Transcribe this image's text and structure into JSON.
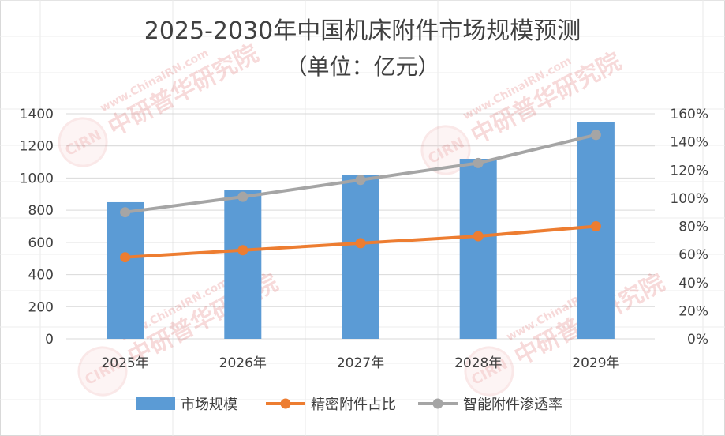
{
  "chart_data": {
    "type": "bar",
    "title": "2025-2030年中国机床附件市场规模预测",
    "subtitle": "（单位：亿元）",
    "categories": [
      "2025年",
      "2026年",
      "2027年",
      "2028年",
      "2029年"
    ],
    "series": [
      {
        "name": "市场规模",
        "type": "bar",
        "axis": "left",
        "values": [
          850,
          925,
          1020,
          1120,
          1350
        ],
        "color": "#5B9BD5"
      },
      {
        "name": "精密附件占比",
        "type": "line",
        "axis": "right",
        "values": [
          0.58,
          0.63,
          0.68,
          0.73,
          0.8
        ],
        "color": "#ED7D31"
      },
      {
        "name": "智能附件渗透率",
        "type": "line",
        "axis": "right",
        "values": [
          0.9,
          1.01,
          1.13,
          1.25,
          1.45
        ],
        "color": "#A5A5A5"
      }
    ],
    "y_left": {
      "min": 0,
      "max": 1400,
      "ticks": [
        "0",
        "200",
        "400",
        "600",
        "800",
        "1000",
        "1200",
        "1400"
      ]
    },
    "y_right": {
      "min": 0,
      "max": 1.6,
      "ticks": [
        "0%",
        "20%",
        "40%",
        "60%",
        "80%",
        "100%",
        "120%",
        "140%",
        "160%"
      ]
    },
    "grid": true,
    "legend_position": "bottom"
  },
  "watermark": {
    "logo_text": "CIRN",
    "company": "中研普华研究院",
    "url": "www.ChinaIRN.com"
  }
}
